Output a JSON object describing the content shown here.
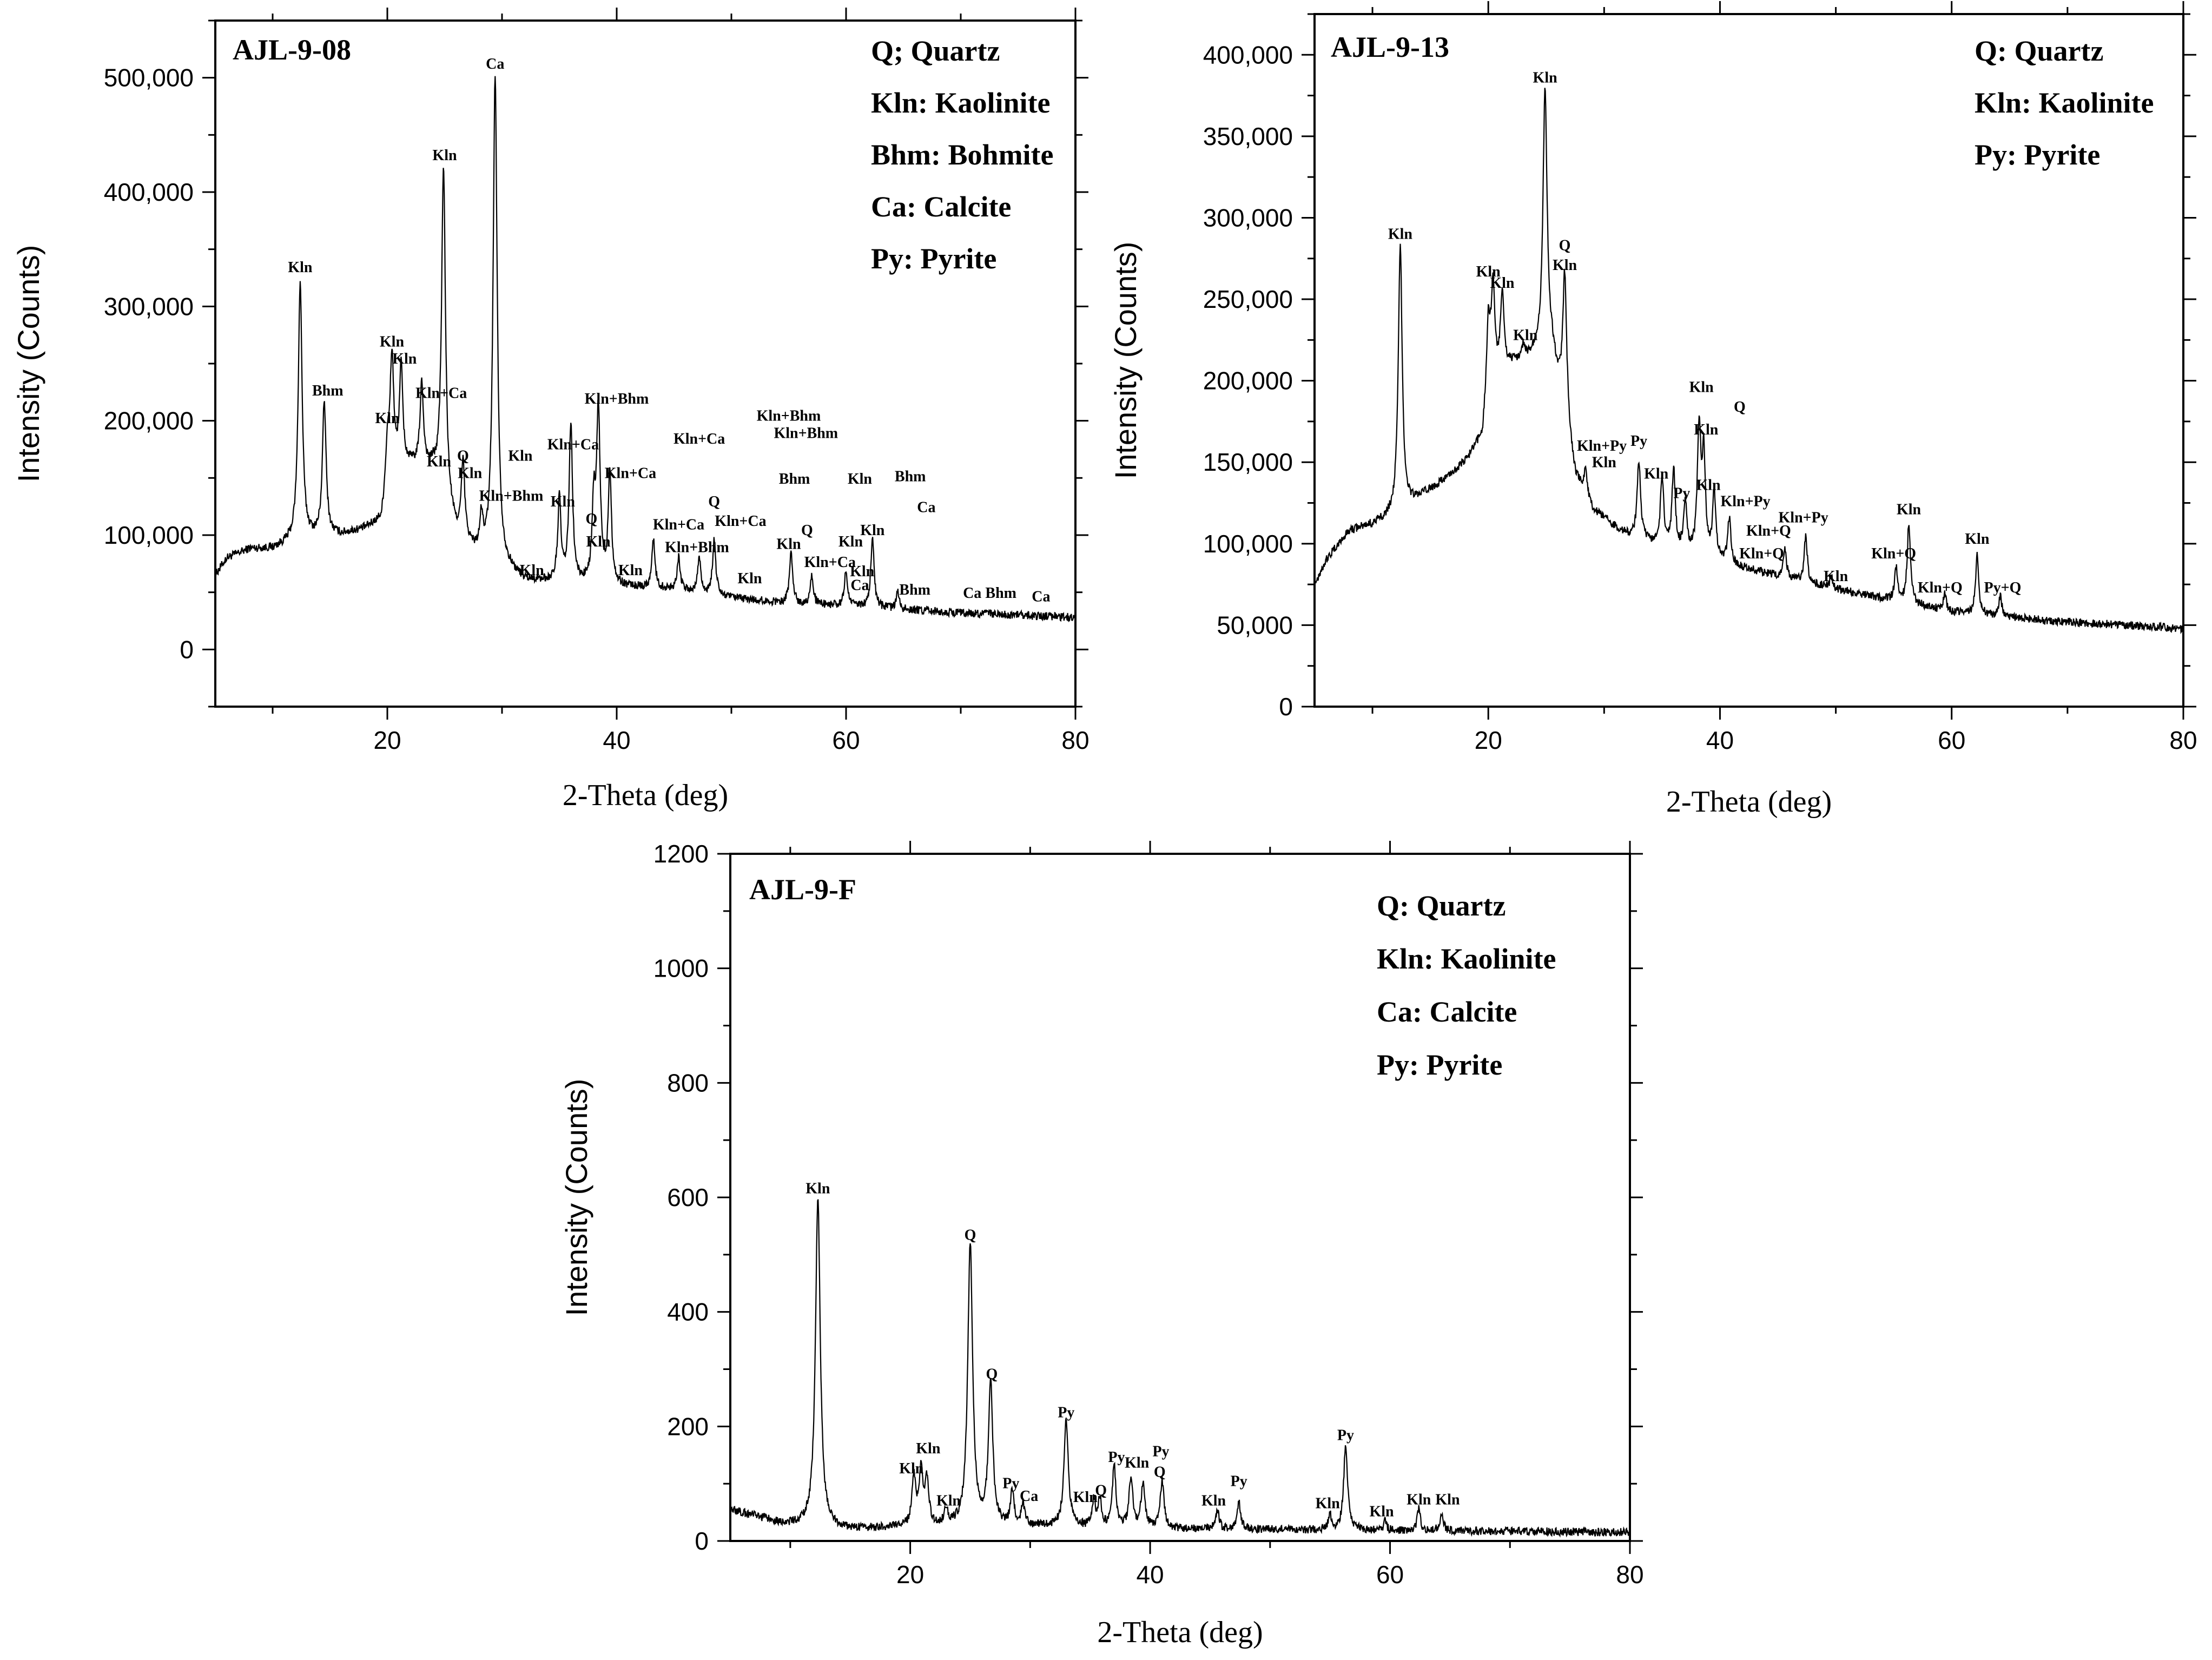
{
  "chart_data": [
    {
      "type": "line",
      "title": "AJL-9-08",
      "xlabel": "2-Theta (deg)",
      "ylabel": "Intensity (Counts)",
      "xlim": [
        5,
        80
      ],
      "ylim": [
        -50000,
        550000
      ],
      "xticks": [
        20,
        40,
        60,
        80
      ],
      "yticks": [
        0,
        100000,
        200000,
        300000,
        400000,
        500000
      ],
      "ytick_labels": [
        "0",
        "100,000",
        "200,000",
        "300,000",
        "400,000",
        "500,000"
      ],
      "legend": [
        "Q; Quartz",
        "Kln: Kaolinite",
        "Bhm: Bohmite",
        "Ca: Calcite",
        "Py: Pyrite"
      ],
      "baseline": [
        [
          5,
          65000
        ],
        [
          6,
          80000
        ],
        [
          8,
          88000
        ],
        [
          10,
          88000
        ],
        [
          12,
          95000
        ],
        [
          14,
          98000
        ],
        [
          16,
          100000
        ],
        [
          18,
          105000
        ],
        [
          19.5,
          112000
        ],
        [
          20,
          150000
        ],
        [
          22,
          160000
        ],
        [
          24,
          155000
        ],
        [
          26,
          100000
        ],
        [
          28,
          80000
        ],
        [
          30,
          72000
        ],
        [
          32,
          60000
        ],
        [
          35,
          58000
        ],
        [
          40,
          55000
        ],
        [
          45,
          52000
        ],
        [
          50,
          45000
        ],
        [
          55,
          40000
        ],
        [
          60,
          38000
        ],
        [
          65,
          35000
        ],
        [
          70,
          32000
        ],
        [
          75,
          30000
        ],
        [
          80,
          28000
        ]
      ],
      "peaks": [
        [
          12.4,
          320000,
          1.7
        ],
        [
          14.5,
          215000,
          1.6
        ],
        [
          20.0,
          175000,
          1.4
        ],
        [
          20.4,
          255000,
          1.6
        ],
        [
          21.2,
          245000,
          1.5
        ],
        [
          23.0,
          230000,
          1.5
        ],
        [
          24.9,
          420000,
          1.7
        ],
        [
          26.6,
          160000,
          1.5
        ],
        [
          28.2,
          110000,
          1.4
        ],
        [
          29.4,
          500000,
          1.8
        ],
        [
          35.0,
          130000,
          1.4
        ],
        [
          36.0,
          195000,
          1.5
        ],
        [
          38.0,
          120000,
          1.4
        ],
        [
          38.4,
          205000,
          1.6
        ],
        [
          39.4,
          155000,
          1.4
        ],
        [
          43.2,
          95000,
          1.4
        ],
        [
          45.4,
          80000,
          1.4
        ],
        [
          47.2,
          80000,
          1.4
        ],
        [
          48.5,
          95000,
          1.4
        ],
        [
          55.2,
          85000,
          1.4
        ],
        [
          57.0,
          65000,
          1.3
        ],
        [
          60.0,
          70000,
          1.3
        ],
        [
          62.3,
          98000,
          1.4
        ],
        [
          64.5,
          50000,
          1.2
        ]
      ],
      "peak_labels": [
        {
          "text": "Kln",
          "x": 12.4,
          "y": 330000
        },
        {
          "text": "Bhm",
          "x": 14.8,
          "y": 222000
        },
        {
          "text": "Kln",
          "x": 20.4,
          "y": 265000
        },
        {
          "text": "Kln",
          "x": 21.5,
          "y": 250000
        },
        {
          "text": "Kln",
          "x": 20.0,
          "y": 198000
        },
        {
          "text": "Kln+Ca",
          "x": 24.7,
          "y": 220000
        },
        {
          "text": "Kln",
          "x": 25.0,
          "y": 428000
        },
        {
          "text": "Ca",
          "x": 29.4,
          "y": 508000
        },
        {
          "text": "Q",
          "x": 26.6,
          "y": 165000
        },
        {
          "text": "Kln",
          "x": 24.5,
          "y": 160000
        },
        {
          "text": "Kln",
          "x": 27.2,
          "y": 150000
        },
        {
          "text": "Kln+Bhm",
          "x": 30.8,
          "y": 130000
        },
        {
          "text": "Kln",
          "x": 31.6,
          "y": 165000
        },
        {
          "text": "Kln",
          "x": 35.3,
          "y": 125000
        },
        {
          "text": "Kln+Ca",
          "x": 36.2,
          "y": 175000
        },
        {
          "text": "Kln+Bhm",
          "x": 40.0,
          "y": 215000
        },
        {
          "text": "Kln+Ca",
          "x": 41.2,
          "y": 150000
        },
        {
          "text": "Q",
          "x": 37.8,
          "y": 110000
        },
        {
          "text": "Kln",
          "x": 38.4,
          "y": 90000
        },
        {
          "text": "Kln",
          "x": 32.6,
          "y": 65000
        },
        {
          "text": "Kln",
          "x": 41.2,
          "y": 65000
        },
        {
          "text": "Kln+Ca",
          "x": 47.2,
          "y": 180000
        },
        {
          "text": "Kln+Bhm",
          "x": 55.0,
          "y": 200000
        },
        {
          "text": "Kln+Bhm",
          "x": 56.5,
          "y": 185000
        },
        {
          "text": "Kln+Ca",
          "x": 45.4,
          "y": 105000
        },
        {
          "text": "Kln+Bhm",
          "x": 47.0,
          "y": 85000
        },
        {
          "text": "Q",
          "x": 48.5,
          "y": 125000
        },
        {
          "text": "Kln+Ca",
          "x": 50.8,
          "y": 108000
        },
        {
          "text": "Bhm",
          "x": 55.5,
          "y": 145000
        },
        {
          "text": "Kln",
          "x": 51.6,
          "y": 58000
        },
        {
          "text": "Kln",
          "x": 55.0,
          "y": 88000
        },
        {
          "text": "Q",
          "x": 56.6,
          "y": 100000
        },
        {
          "text": "Kln+Ca",
          "x": 58.6,
          "y": 72000
        },
        {
          "text": "Kln",
          "x": 61.2,
          "y": 145000
        },
        {
          "text": "Bhm",
          "x": 65.6,
          "y": 147000
        },
        {
          "text": "Kln",
          "x": 60.4,
          "y": 90000
        },
        {
          "text": "Kln",
          "x": 62.3,
          "y": 100000
        },
        {
          "text": "Ca",
          "x": 67.0,
          "y": 120000
        },
        {
          "text": "Kln",
          "x": 61.4,
          "y": 64000
        },
        {
          "text": "Ca",
          "x": 61.2,
          "y": 52000
        },
        {
          "text": "Bhm",
          "x": 66.0,
          "y": 48000
        },
        {
          "text": "Ca",
          "x": 71.0,
          "y": 45000
        },
        {
          "text": "Bhm",
          "x": 73.5,
          "y": 45000
        },
        {
          "text": "Ca",
          "x": 77.0,
          "y": 42000
        }
      ]
    },
    {
      "type": "line",
      "title": "AJL-9-13",
      "xlabel": "2-Theta (deg)",
      "ylabel": "Intensity (Counts)",
      "xlim": [
        5,
        80
      ],
      "ylim": [
        0,
        425000
      ],
      "xticks": [
        20,
        40,
        60,
        80
      ],
      "yticks": [
        0,
        50000,
        100000,
        150000,
        200000,
        250000,
        300000,
        350000,
        400000
      ],
      "ytick_labels": [
        "0",
        "50,000",
        "100,000",
        "150,000",
        "200,000",
        "250,000",
        "300,000",
        "350,000",
        "400,000"
      ],
      "legend": [
        "Q: Quartz",
        "Kln: Kaolinite",
        "Py: Pyrite"
      ],
      "baseline": [
        [
          5,
          75000
        ],
        [
          6,
          90000
        ],
        [
          8,
          108000
        ],
        [
          10,
          112000
        ],
        [
          12,
          118000
        ],
        [
          14,
          128000
        ],
        [
          16,
          138000
        ],
        [
          18,
          150000
        ],
        [
          19.5,
          165000
        ],
        [
          20,
          200000
        ],
        [
          22,
          210000
        ],
        [
          24,
          215000
        ],
        [
          25.5,
          215000
        ],
        [
          26.5,
          180000
        ],
        [
          27.5,
          140000
        ],
        [
          29,
          120000
        ],
        [
          32,
          105000
        ],
        [
          36,
          95000
        ],
        [
          40,
          88000
        ],
        [
          45,
          80000
        ],
        [
          50,
          72000
        ],
        [
          55,
          65000
        ],
        [
          60,
          58000
        ],
        [
          65,
          55000
        ],
        [
          70,
          52000
        ],
        [
          75,
          50000
        ],
        [
          80,
          48000
        ]
      ],
      "peaks": [
        [
          12.4,
          282000,
          1.7
        ],
        [
          20.0,
          235000,
          1.4
        ],
        [
          20.4,
          258000,
          1.5
        ],
        [
          21.2,
          252000,
          1.5
        ],
        [
          23.0,
          220000,
          1.4
        ],
        [
          24.9,
          378000,
          1.8
        ],
        [
          26.6,
          265000,
          1.7
        ],
        [
          28.4,
          145000,
          1.4
        ],
        [
          33.0,
          150000,
          1.5
        ],
        [
          35.0,
          140000,
          1.4
        ],
        [
          36.0,
          145000,
          1.4
        ],
        [
          37.0,
          125000,
          1.4
        ],
        [
          38.2,
          170000,
          1.5
        ],
        [
          38.6,
          150000,
          1.4
        ],
        [
          39.5,
          130000,
          1.4
        ],
        [
          40.8,
          115000,
          1.4
        ],
        [
          45.6,
          98000,
          1.3
        ],
        [
          47.4,
          105000,
          1.3
        ],
        [
          49.6,
          80000,
          1.2
        ],
        [
          55.2,
          85000,
          1.3
        ],
        [
          56.3,
          112000,
          1.4
        ],
        [
          59.4,
          70000,
          1.2
        ],
        [
          62.2,
          95000,
          1.3
        ],
        [
          64.2,
          68000,
          1.2
        ]
      ],
      "peak_labels": [
        {
          "text": "Kln",
          "x": 12.4,
          "y": 287000
        },
        {
          "text": "Kln",
          "x": 20.0,
          "y": 264000
        },
        {
          "text": "Kln",
          "x": 21.2,
          "y": 257000
        },
        {
          "text": "Kln",
          "x": 23.2,
          "y": 225000
        },
        {
          "text": "Kln",
          "x": 24.9,
          "y": 383000
        },
        {
          "text": "Q",
          "x": 26.6,
          "y": 280000
        },
        {
          "text": "Kln",
          "x": 26.6,
          "y": 268000
        },
        {
          "text": "Kln+Py",
          "x": 29.8,
          "y": 157000
        },
        {
          "text": "Kln",
          "x": 30.0,
          "y": 147000
        },
        {
          "text": "Py",
          "x": 33.0,
          "y": 160000
        },
        {
          "text": "Kln",
          "x": 34.5,
          "y": 140000
        },
        {
          "text": "Py",
          "x": 36.7,
          "y": 128000
        },
        {
          "text": "Kln",
          "x": 38.4,
          "y": 193000
        },
        {
          "text": "Kln",
          "x": 38.8,
          "y": 167000
        },
        {
          "text": "Q",
          "x": 41.7,
          "y": 181000
        },
        {
          "text": "Kln",
          "x": 39.0,
          "y": 133000
        },
        {
          "text": "Kln+Py",
          "x": 42.2,
          "y": 123000
        },
        {
          "text": "Kln+Py",
          "x": 47.2,
          "y": 113000
        },
        {
          "text": "Kln+Q",
          "x": 44.2,
          "y": 105000
        },
        {
          "text": "Kln+Q",
          "x": 43.6,
          "y": 91000
        },
        {
          "text": "Kln",
          "x": 50.0,
          "y": 77000
        },
        {
          "text": "Kln",
          "x": 56.3,
          "y": 118000
        },
        {
          "text": "Kln+Q",
          "x": 55.0,
          "y": 91000
        },
        {
          "text": "Kln",
          "x": 62.2,
          "y": 100000
        },
        {
          "text": "Kln+Q",
          "x": 59.0,
          "y": 70000
        },
        {
          "text": "Py+Q",
          "x": 64.4,
          "y": 70000
        }
      ]
    },
    {
      "type": "line",
      "title": "AJL-9-F",
      "xlabel": "2-Theta (deg)",
      "ylabel": "Intensity (Counts)",
      "xlim": [
        5,
        80
      ],
      "ylim": [
        0,
        1200
      ],
      "xticks": [
        20,
        40,
        60,
        80
      ],
      "yticks": [
        0,
        200,
        400,
        600,
        800,
        1000,
        1200
      ],
      "ytick_labels": [
        "0",
        "200",
        "400",
        "600",
        "800",
        "1000",
        "1200"
      ],
      "legend": [
        "Q: Quartz",
        "Kln: Kaolinite",
        "Ca: Calcite",
        "Py: Pyrite"
      ],
      "baseline": [
        [
          5,
          55
        ],
        [
          8,
          38
        ],
        [
          10,
          28
        ],
        [
          15,
          20
        ],
        [
          20,
          25
        ],
        [
          25,
          25
        ],
        [
          30,
          25
        ],
        [
          40,
          22
        ],
        [
          50,
          20
        ],
        [
          60,
          18
        ],
        [
          70,
          17
        ],
        [
          80,
          15
        ]
      ],
      "peaks": [
        [
          12.3,
          600,
          2.0
        ],
        [
          20.3,
          110,
          1.5
        ],
        [
          20.9,
          120,
          1.5
        ],
        [
          21.4,
          105,
          1.5
        ],
        [
          23.0,
          55,
          1.3
        ],
        [
          25.0,
          520,
          2.0
        ],
        [
          26.7,
          275,
          1.8
        ],
        [
          28.5,
          85,
          1.4
        ],
        [
          29.4,
          65,
          1.3
        ],
        [
          33.0,
          210,
          1.8
        ],
        [
          35.3,
          70,
          1.3
        ],
        [
          35.8,
          75,
          1.3
        ],
        [
          37.0,
          130,
          1.5
        ],
        [
          38.4,
          110,
          1.5
        ],
        [
          39.4,
          100,
          1.5
        ],
        [
          41.0,
          105,
          1.5
        ],
        [
          45.6,
          55,
          1.3
        ],
        [
          47.4,
          70,
          1.4
        ],
        [
          55.0,
          45,
          1.3
        ],
        [
          56.3,
          170,
          1.6
        ],
        [
          59.6,
          35,
          1.2
        ],
        [
          62.4,
          55,
          1.3
        ],
        [
          64.3,
          48,
          1.3
        ]
      ],
      "peak_labels": [
        {
          "text": "Kln",
          "x": 12.3,
          "y": 607
        },
        {
          "text": "Q",
          "x": 25.0,
          "y": 526
        },
        {
          "text": "Q",
          "x": 26.8,
          "y": 283
        },
        {
          "text": "Kln",
          "x": 20.1,
          "y": 118
        },
        {
          "text": "Kln",
          "x": 21.5,
          "y": 153
        },
        {
          "text": "Kln",
          "x": 23.2,
          "y": 62
        },
        {
          "text": "Py",
          "x": 28.4,
          "y": 92
        },
        {
          "text": "Ca",
          "x": 29.9,
          "y": 70
        },
        {
          "text": "Py",
          "x": 33.0,
          "y": 216
        },
        {
          "text": "Kln",
          "x": 34.6,
          "y": 68
        },
        {
          "text": "Q",
          "x": 35.9,
          "y": 80
        },
        {
          "text": "Py",
          "x": 37.2,
          "y": 138
        },
        {
          "text": "Kln",
          "x": 38.9,
          "y": 128
        },
        {
          "text": "Py",
          "x": 40.9,
          "y": 148
        },
        {
          "text": "Q",
          "x": 40.8,
          "y": 112
        },
        {
          "text": "Kln",
          "x": 45.3,
          "y": 62
        },
        {
          "text": "Py",
          "x": 47.4,
          "y": 96
        },
        {
          "text": "Kln",
          "x": 54.8,
          "y": 57
        },
        {
          "text": "Py",
          "x": 56.3,
          "y": 176
        },
        {
          "text": "Kln",
          "x": 59.3,
          "y": 43
        },
        {
          "text": "Kln",
          "x": 62.4,
          "y": 64
        },
        {
          "text": "Kln",
          "x": 64.8,
          "y": 64
        }
      ]
    }
  ]
}
